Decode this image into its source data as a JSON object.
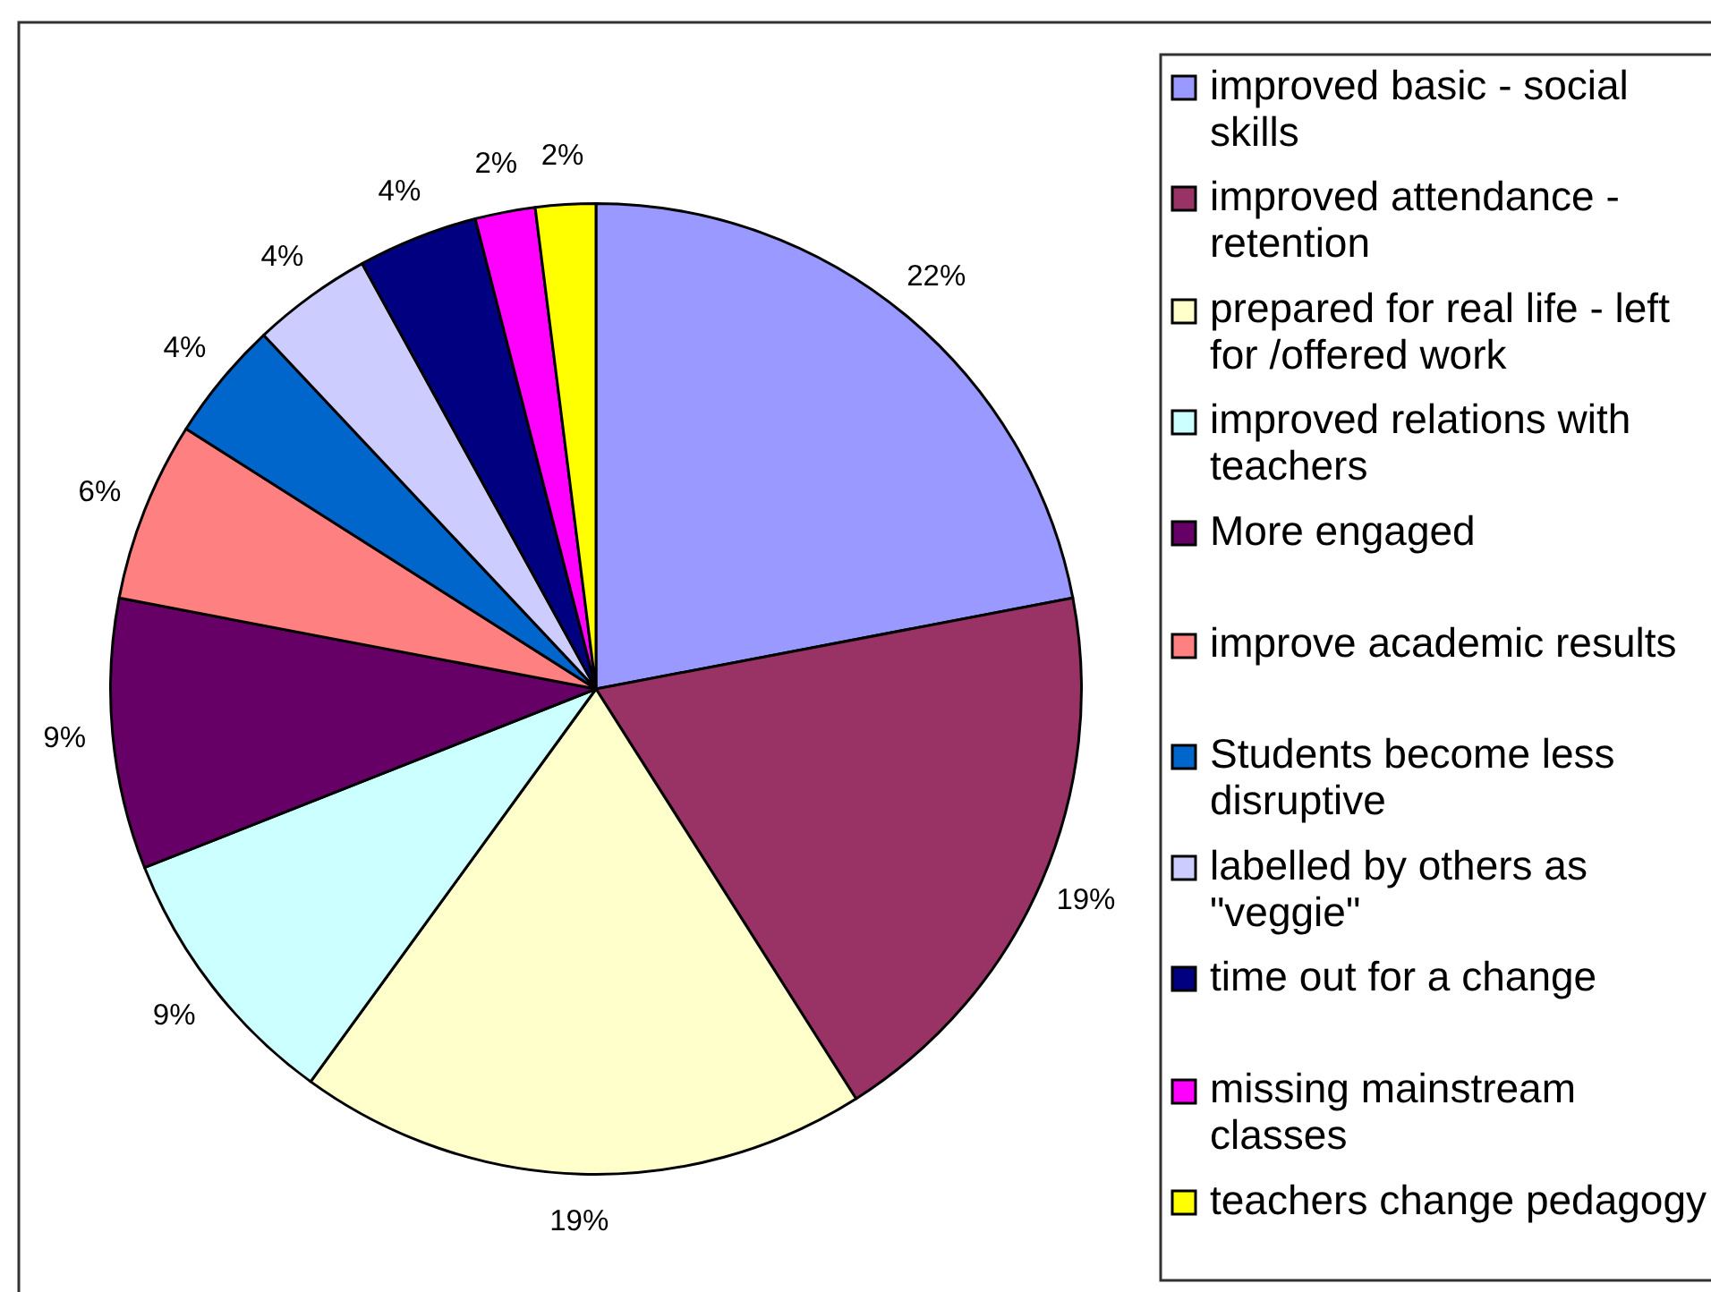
{
  "chart_data": {
    "type": "pie",
    "categories": [
      "improved basic - social skills",
      "improved attendance - retention",
      "prepared for real life - left for /offered work",
      "improved relations with teachers",
      "More engaged",
      "improve academic results",
      "Students become less disruptive",
      "labelled by others as \"veggie\"",
      "time out for a change",
      "missing mainstream classes",
      "teachers change pedagogy"
    ],
    "values": [
      22,
      19,
      19,
      9,
      9,
      6,
      4,
      4,
      4,
      2,
      2
    ],
    "colors": [
      "#9999ff",
      "#993366",
      "#ffffcc",
      "#ccffff",
      "#660066",
      "#ff8080",
      "#0066cc",
      "#ccccff",
      "#000080",
      "#ff00ff",
      "#ffff00"
    ],
    "value_labels": [
      "22%",
      "19%",
      "19%",
      "9%",
      "9%",
      "6%",
      "4%",
      "4%",
      "4%",
      "2%",
      "2%"
    ],
    "legend": "right"
  }
}
